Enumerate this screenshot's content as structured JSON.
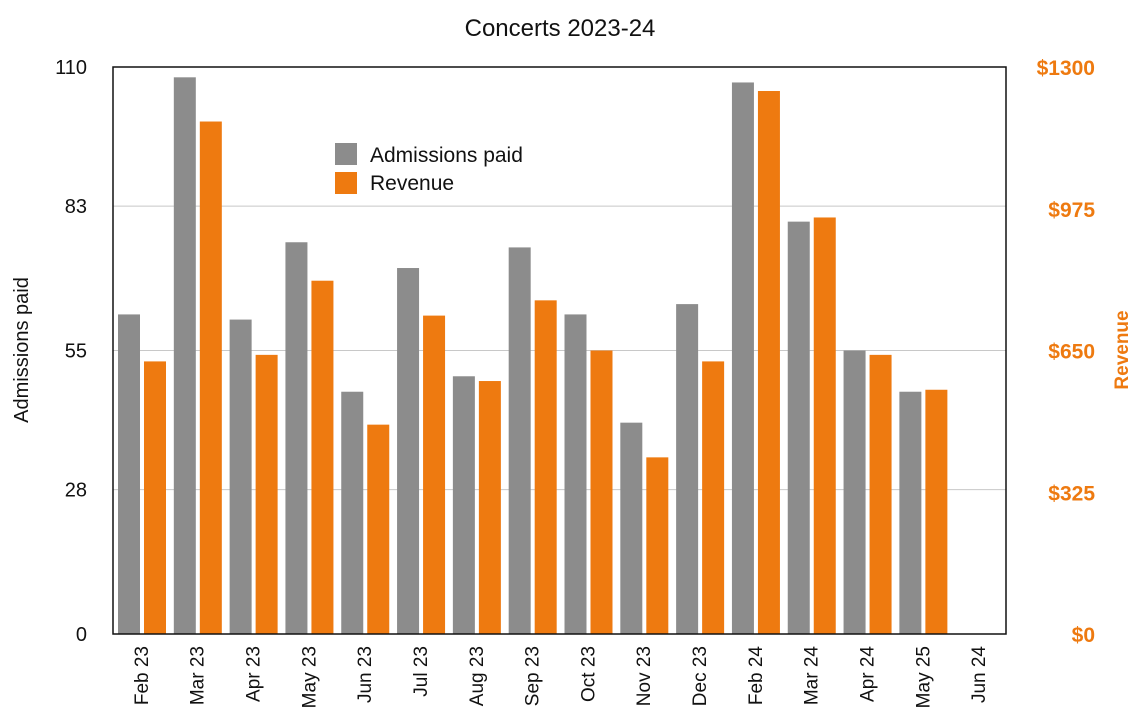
{
  "chart_data": {
    "type": "bar",
    "title": "Concerts 2023-24",
    "categories": [
      "Feb 23",
      "Mar 23",
      "Apr 23",
      "May 23",
      "Jun 23",
      "Jul 23",
      "Aug 23",
      "Sep 23",
      "Oct 23",
      "Nov 23",
      "Dec 23",
      "Feb 24",
      "Mar 24",
      "Apr 24",
      "May 25",
      "Jun 24"
    ],
    "series": [
      {
        "name": "Admissions paid",
        "axis": "left",
        "color": "#8c8c8c",
        "values": [
          62,
          108,
          61,
          76,
          47,
          71,
          50,
          75,
          62,
          41,
          64,
          107,
          80,
          55,
          47,
          null
        ]
      },
      {
        "name": "Revenue",
        "axis": "right",
        "color": "#ee7a10",
        "values": [
          625,
          1175,
          640,
          810,
          480,
          730,
          580,
          765,
          650,
          405,
          625,
          1245,
          955,
          640,
          560,
          null
        ]
      }
    ],
    "y_left": {
      "label": "Admissions paid",
      "range": [
        0,
        110
      ],
      "ticks": [
        0,
        28,
        55,
        83,
        110
      ],
      "tick_labels": [
        "0",
        "28",
        "55",
        "83",
        "110"
      ]
    },
    "y_right": {
      "label": "Revenue",
      "range": [
        0,
        1300
      ],
      "ticks": [
        0,
        325,
        650,
        975,
        1300
      ],
      "tick_labels": [
        "$0",
        "$325",
        "$650",
        "$975",
        "$1300"
      ],
      "color": "#ee7a10"
    },
    "grid": true,
    "legend_position": "top-center"
  }
}
